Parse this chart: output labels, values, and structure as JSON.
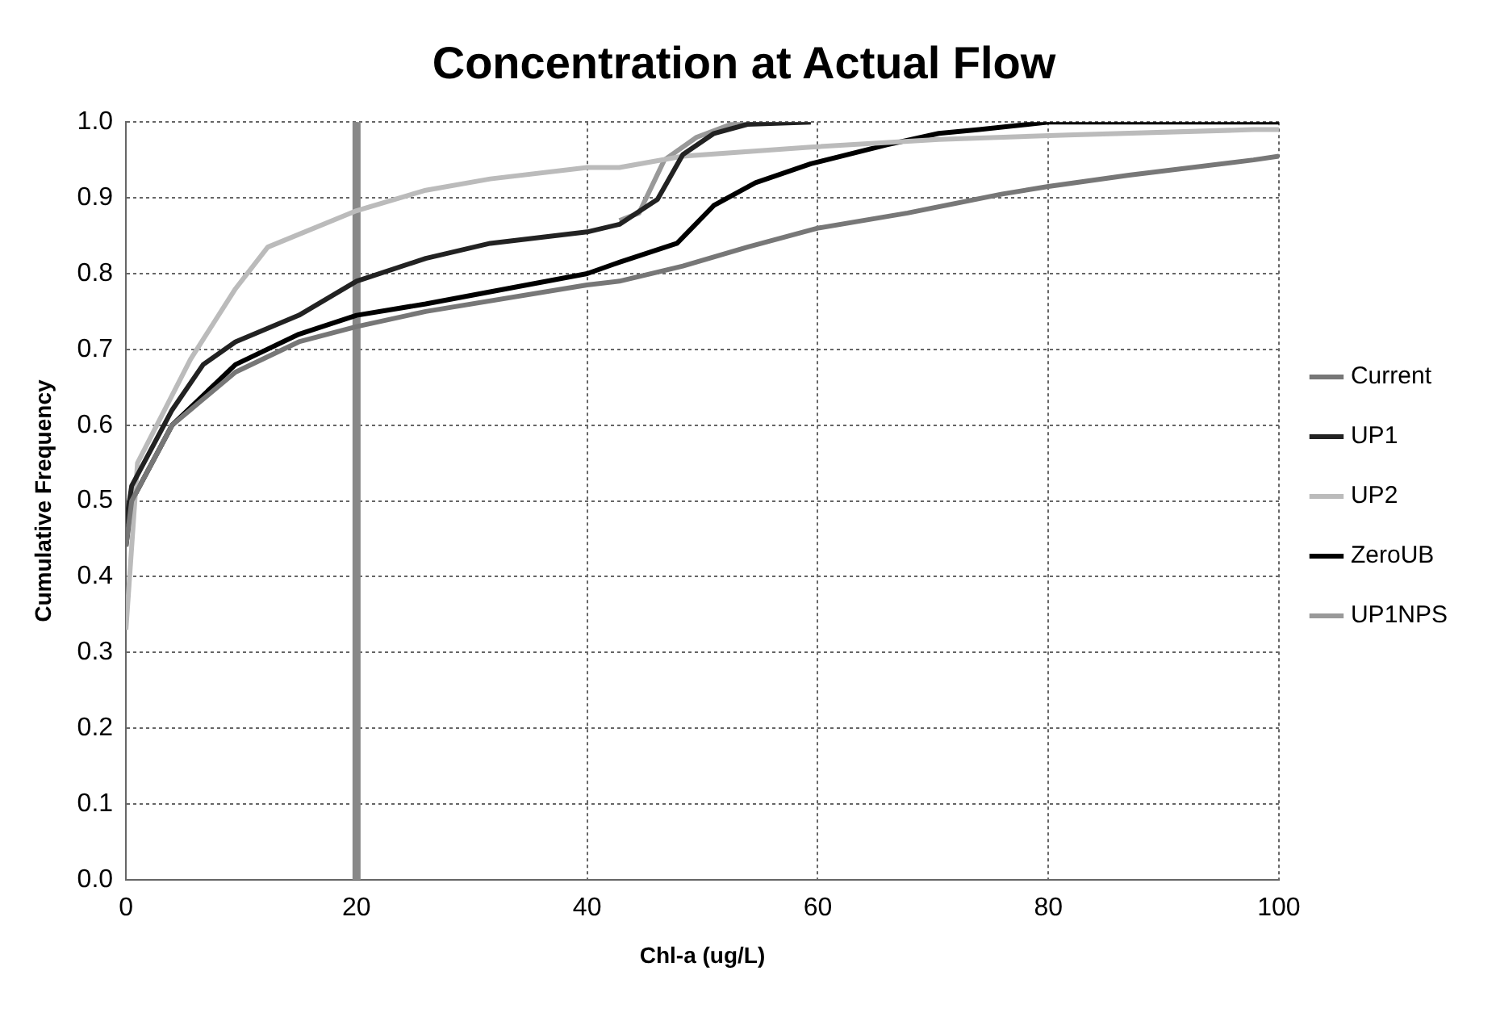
{
  "chart_data": {
    "type": "line",
    "title": "Concentration at Actual Flow",
    "xlabel": "Chl-a (ug/L)",
    "ylabel": "Cumulative Frequency",
    "xlim": [
      0,
      100
    ],
    "xticks": [
      0,
      20,
      40,
      60,
      80,
      100
    ],
    "ylim": [
      0,
      1
    ],
    "yticks": [
      {
        "value": 0,
        "label": "0.0"
      },
      0.1,
      0.2,
      0.3,
      0.4,
      0.5,
      0.6,
      0.7,
      0.8,
      0.9,
      {
        "value": 1,
        "label": "1.0"
      }
    ],
    "grid": true,
    "legend": "right",
    "marker": "none",
    "line_style": "solid",
    "ref_lines": [
      {
        "axis": "x",
        "value": 20,
        "color": "#888888"
      }
    ],
    "series": [
      {
        "name": "Current",
        "color": "#777777",
        "x": [
          0,
          0.5,
          4,
          9.5,
          15,
          20,
          26,
          40,
          42.8,
          48.3,
          53.9,
          60,
          67.8,
          76,
          80,
          87,
          97.8,
          100
        ],
        "values": [
          0.44,
          0.5,
          0.6,
          0.67,
          0.71,
          0.73,
          0.75,
          0.785,
          0.79,
          0.81,
          0.835,
          0.86,
          0.88,
          0.905,
          0.915,
          0.93,
          0.95,
          0.955
        ]
      },
      {
        "name": "UP1",
        "color": "#222222",
        "x": [
          0,
          0.5,
          4,
          6.7,
          9.5,
          15,
          20,
          26,
          31.6,
          40,
          42.8,
          46.1,
          48.3,
          51,
          53.9,
          59.4
        ],
        "values": [
          0.47,
          0.52,
          0.62,
          0.68,
          0.71,
          0.745,
          0.79,
          0.82,
          0.84,
          0.855,
          0.865,
          0.898,
          0.957,
          0.985,
          0.997,
          1
        ]
      },
      {
        "name": "UP2",
        "color": "#bbbbbb",
        "x": [
          0,
          1,
          5.6,
          9.5,
          12.3,
          20,
          26,
          31.6,
          40,
          42.8,
          48.3,
          59.4,
          70.5,
          81.7,
          97.8,
          100
        ],
        "values": [
          0.33,
          0.55,
          0.687,
          0.78,
          0.835,
          0.883,
          0.91,
          0.925,
          0.94,
          0.94,
          0.955,
          0.967,
          0.977,
          0.983,
          0.99,
          0.99
        ]
      },
      {
        "name": "ZeroUB",
        "color": "#000000",
        "x": [
          0,
          0.5,
          4,
          9.5,
          15,
          20,
          26,
          40,
          42.8,
          47.8,
          51,
          54.6,
          59.4,
          66,
          70.5,
          74,
          80,
          100
        ],
        "values": [
          0.44,
          0.5,
          0.6,
          0.68,
          0.72,
          0.745,
          0.76,
          0.8,
          0.815,
          0.84,
          0.89,
          0.92,
          0.945,
          0.97,
          0.985,
          0.99,
          1,
          1
        ]
      },
      {
        "name": "UP1NPS",
        "color": "#999999",
        "x": [
          42.8,
          44.5,
          46.7,
          49.5,
          53,
          59.4
        ],
        "values": [
          0.87,
          0.88,
          0.95,
          0.98,
          1,
          1
        ]
      }
    ]
  }
}
